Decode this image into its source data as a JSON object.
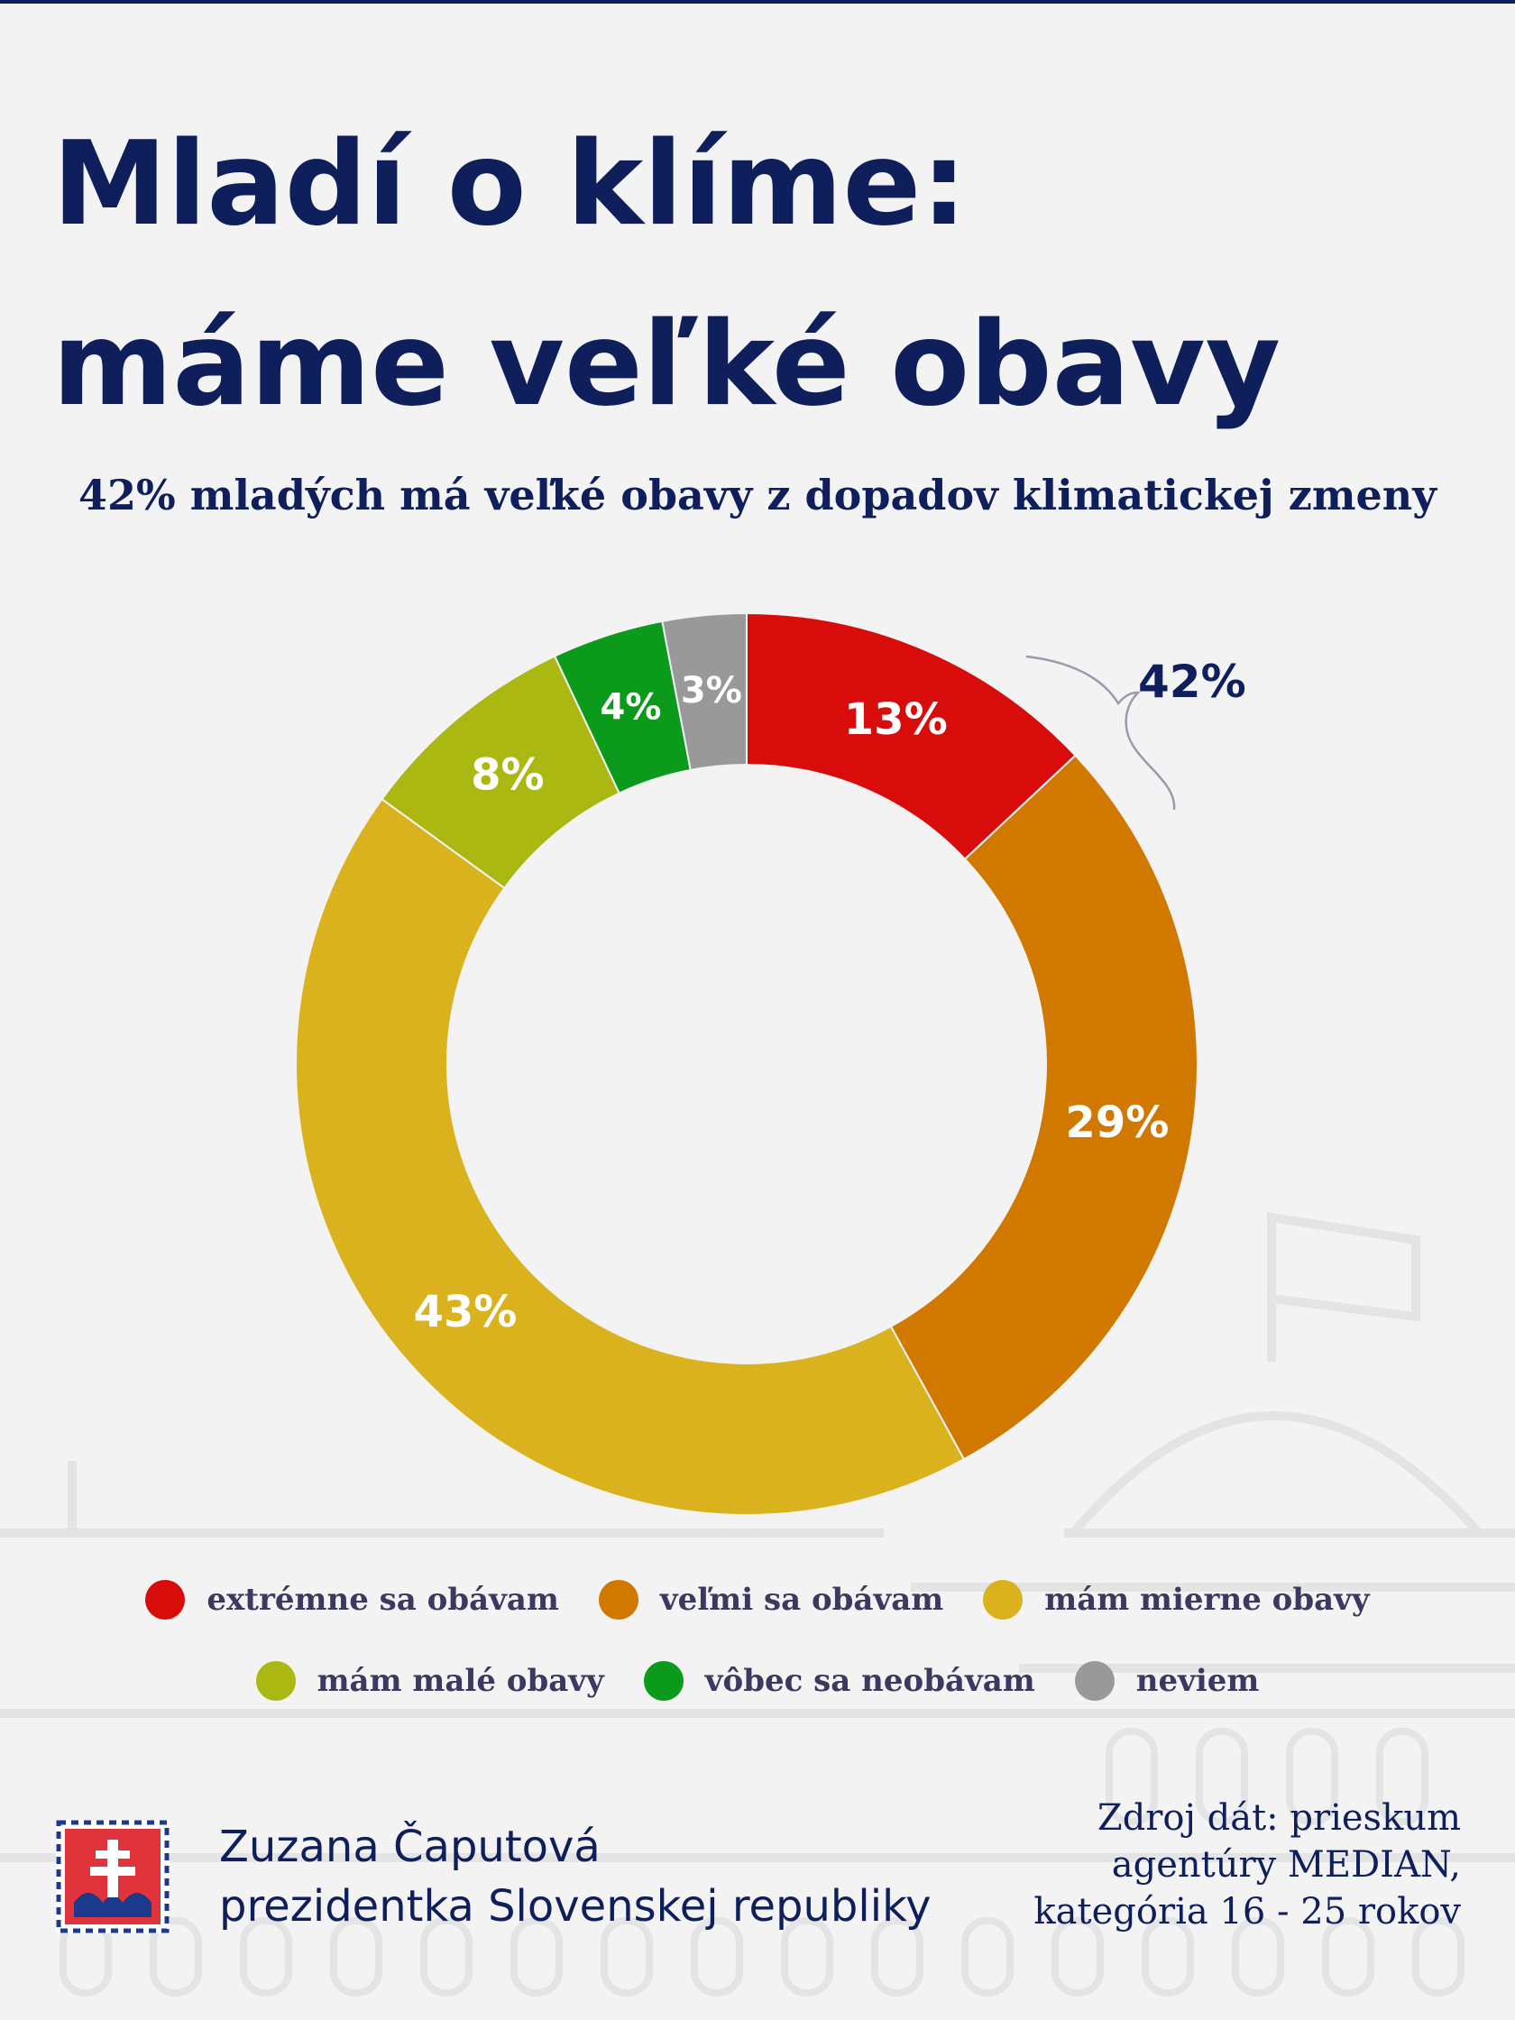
{
  "title": {
    "line1": "Mladí o klíme:",
    "line2": "máme veľké obavy"
  },
  "subtitle": "42% mladých má veľké obavy z dopadov klimatickej zmeny",
  "chart_data": {
    "type": "pie",
    "donut": true,
    "categories": [
      "extrémne sa obávam",
      "veľmi sa obávam",
      "mám mierne obavy",
      "mám malé obavy",
      "vôbec sa neobávam",
      "neviem"
    ],
    "values": [
      13,
      29,
      43,
      8,
      4,
      3
    ],
    "labels": [
      "13%",
      "29%",
      "43%",
      "8%",
      "4%",
      "3%"
    ],
    "colors": [
      "#d90c0c",
      "#d17800",
      "#dab21e",
      "#abb812",
      "#0c9a1c",
      "#999999"
    ],
    "annotation": {
      "text": "42%",
      "covers": [
        "extrémne sa obávam",
        "veľmi sa obávam"
      ]
    },
    "legend_position": "bottom"
  },
  "legend": {
    "items": [
      {
        "label": "extrémne sa obávam",
        "color": "#d90c0c"
      },
      {
        "label": "veľmi sa obávam",
        "color": "#d17800"
      },
      {
        "label": "mám mierne obavy",
        "color": "#dab21e"
      },
      {
        "label": "mám malé obavy",
        "color": "#abb812"
      },
      {
        "label": "vôbec sa neobávam",
        "color": "#0c9a1c"
      },
      {
        "label": "neviem",
        "color": "#999999"
      }
    ]
  },
  "footer": {
    "name": "Zuzana Čaputová",
    "role": "prezidentka Slovenskej republiky",
    "source_line1": "Zdroj dát: prieskum",
    "source_line2": "agentúry MEDIAN,",
    "source_line3": "kategória 16 - 25 rokov",
    "crest_icon": "slovak-coat-of-arms-icon"
  }
}
